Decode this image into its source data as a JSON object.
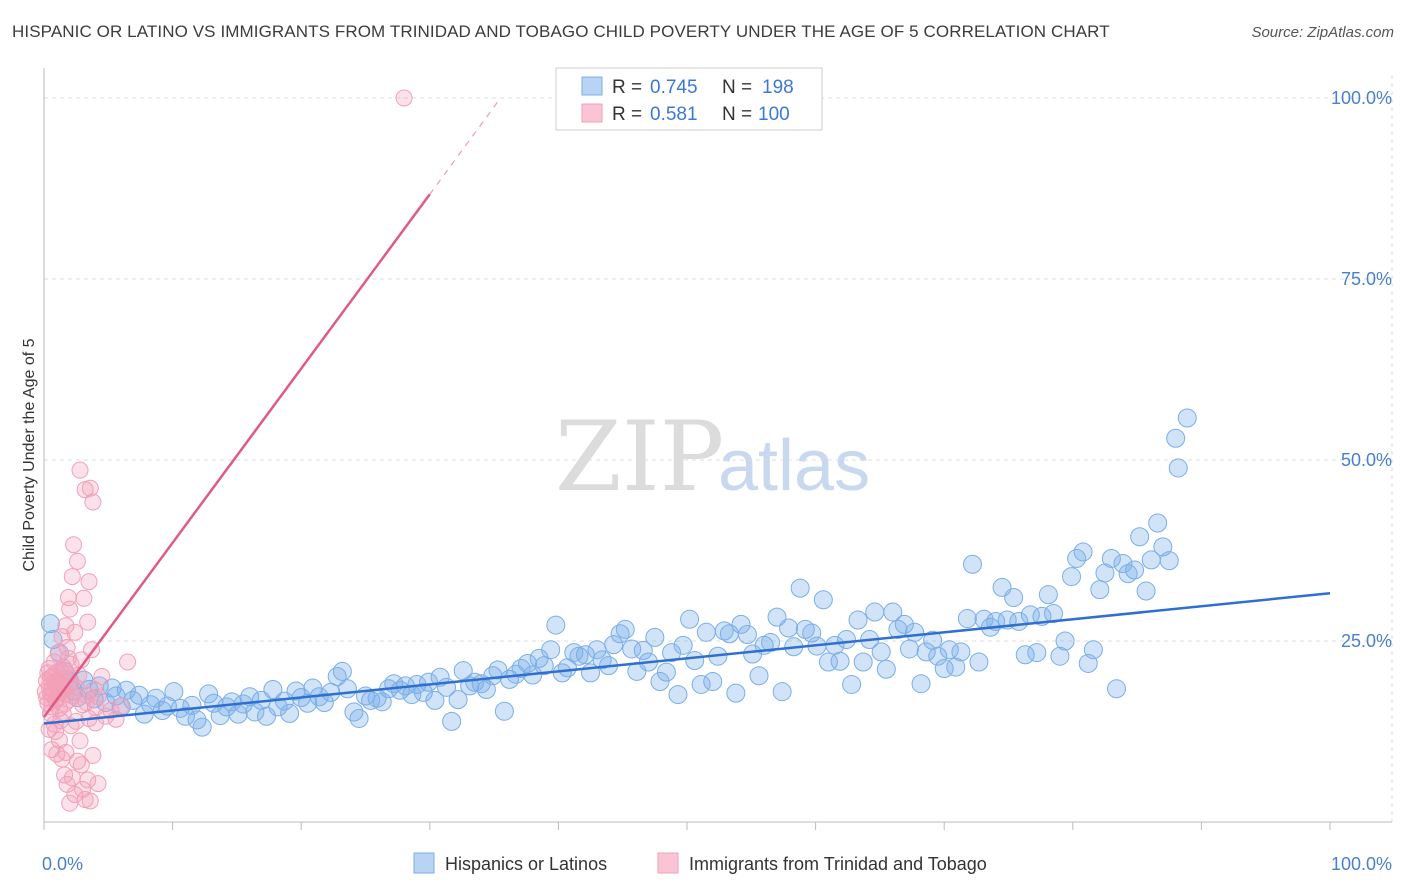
{
  "title": "HISPANIC OR LATINO VS IMMIGRANTS FROM TRINIDAD AND TOBAGO CHILD POVERTY UNDER THE AGE OF 5 CORRELATION CHART",
  "source": "Source: ZipAtlas.com",
  "watermark": {
    "zip": "ZIP",
    "atlas": "atlas"
  },
  "chart_data": {
    "type": "scatter",
    "title": "HISPANIC OR LATINO VS IMMIGRANTS FROM TRINIDAD AND TOBAGO CHILD POVERTY UNDER THE AGE OF 5 CORRELATION CHART",
    "xlabel": "",
    "ylabel": "Child Poverty Under the Age of 5",
    "xlim": [
      0,
      100
    ],
    "ylim": [
      0,
      105
    ],
    "x_tick_labels": {
      "left": "0.0%",
      "right": "100.0%"
    },
    "y_ticks": [
      25,
      50,
      75,
      100
    ],
    "y_tick_labels": [
      "25.0%",
      "50.0%",
      "75.0%",
      "100.0%"
    ],
    "grid": true,
    "legend_position": "top-center",
    "series": [
      {
        "name": "Hispanics or Latinos",
        "color": "#7aaee8",
        "line_color": "#2f6fd0",
        "R": "0.745",
        "N": "198",
        "trend": {
          "x0": 0,
          "y0": 13.6,
          "x1": 100,
          "y1": 31.6
        },
        "points": [
          [
            0.5,
            27.4
          ],
          [
            0.7,
            25.2
          ],
          [
            1.2,
            23.3
          ],
          [
            1.6,
            20.8
          ],
          [
            2.0,
            19.4
          ],
          [
            2.3,
            18.1
          ],
          [
            2.6,
            17.2
          ],
          [
            3.1,
            19.6
          ],
          [
            3.5,
            18.3
          ],
          [
            3.9,
            17.0
          ],
          [
            4.3,
            18.8
          ],
          [
            4.8,
            16.5
          ],
          [
            5.3,
            18.5
          ],
          [
            5.6,
            17.4
          ],
          [
            6.0,
            15.9
          ],
          [
            6.4,
            18.2
          ],
          [
            6.9,
            16.8
          ],
          [
            7.4,
            17.5
          ],
          [
            7.8,
            14.9
          ],
          [
            8.3,
            16.2
          ],
          [
            8.7,
            17.1
          ],
          [
            9.2,
            15.4
          ],
          [
            9.6,
            16.0
          ],
          [
            10.1,
            18.0
          ],
          [
            10.6,
            15.7
          ],
          [
            11.0,
            14.6
          ],
          [
            11.5,
            16.1
          ],
          [
            11.9,
            14.1
          ],
          [
            12.3,
            13.1
          ],
          [
            12.8,
            17.7
          ],
          [
            13.2,
            16.4
          ],
          [
            13.7,
            14.7
          ],
          [
            14.2,
            15.9
          ],
          [
            14.6,
            16.6
          ],
          [
            15.1,
            14.9
          ],
          [
            15.5,
            16.3
          ],
          [
            16.0,
            17.3
          ],
          [
            16.4,
            15.2
          ],
          [
            16.9,
            16.8
          ],
          [
            17.3,
            14.6
          ],
          [
            17.8,
            18.3
          ],
          [
            18.2,
            15.9
          ],
          [
            18.7,
            16.7
          ],
          [
            19.1,
            15.0
          ],
          [
            19.6,
            18.1
          ],
          [
            20.0,
            17.2
          ],
          [
            20.5,
            16.4
          ],
          [
            20.9,
            18.5
          ],
          [
            21.4,
            17.3
          ],
          [
            21.8,
            16.5
          ],
          [
            22.3,
            17.9
          ],
          [
            22.8,
            20.1
          ],
          [
            23.2,
            20.8
          ],
          [
            23.6,
            18.4
          ],
          [
            24.1,
            15.2
          ],
          [
            24.5,
            14.3
          ],
          [
            25.0,
            17.4
          ],
          [
            25.4,
            16.8
          ],
          [
            25.9,
            17.1
          ],
          [
            26.3,
            16.6
          ],
          [
            26.8,
            18.4
          ],
          [
            27.2,
            19.1
          ],
          [
            27.7,
            18.2
          ],
          [
            28.1,
            18.8
          ],
          [
            28.6,
            17.6
          ],
          [
            29.0,
            19.0
          ],
          [
            29.5,
            17.9
          ],
          [
            29.9,
            19.3
          ],
          [
            30.4,
            16.8
          ],
          [
            30.8,
            20.0
          ],
          [
            31.3,
            18.6
          ],
          [
            31.7,
            13.9
          ],
          [
            32.2,
            16.9
          ],
          [
            32.6,
            20.9
          ],
          [
            33.1,
            18.8
          ],
          [
            33.5,
            19.3
          ],
          [
            34.0,
            19.1
          ],
          [
            34.4,
            18.3
          ],
          [
            34.9,
            20.2
          ],
          [
            35.3,
            21.0
          ],
          [
            35.8,
            15.3
          ],
          [
            36.2,
            19.7
          ],
          [
            36.7,
            20.4
          ],
          [
            37.1,
            21.2
          ],
          [
            37.6,
            21.9
          ],
          [
            38.0,
            20.3
          ],
          [
            38.5,
            22.6
          ],
          [
            38.9,
            21.6
          ],
          [
            39.4,
            23.8
          ],
          [
            39.8,
            27.2
          ],
          [
            40.3,
            20.6
          ],
          [
            40.7,
            21.3
          ],
          [
            41.2,
            23.4
          ],
          [
            41.6,
            22.9
          ],
          [
            42.1,
            23.1
          ],
          [
            42.5,
            20.6
          ],
          [
            43.0,
            23.8
          ],
          [
            43.4,
            22.4
          ],
          [
            43.9,
            21.6
          ],
          [
            44.3,
            24.5
          ],
          [
            44.8,
            26.0
          ],
          [
            45.2,
            26.6
          ],
          [
            45.7,
            23.9
          ],
          [
            46.1,
            20.8
          ],
          [
            46.6,
            23.7
          ],
          [
            47.0,
            22.1
          ],
          [
            47.5,
            25.5
          ],
          [
            47.9,
            19.4
          ],
          [
            48.4,
            20.7
          ],
          [
            48.8,
            23.4
          ],
          [
            49.3,
            17.6
          ],
          [
            49.7,
            24.4
          ],
          [
            50.2,
            28.0
          ],
          [
            50.6,
            22.3
          ],
          [
            51.1,
            19.0
          ],
          [
            51.5,
            26.2
          ],
          [
            52.0,
            19.4
          ],
          [
            52.4,
            22.9
          ],
          [
            52.9,
            26.4
          ],
          [
            53.3,
            26.0
          ],
          [
            53.8,
            17.8
          ],
          [
            54.2,
            27.3
          ],
          [
            54.7,
            25.9
          ],
          [
            55.1,
            23.2
          ],
          [
            55.6,
            20.2
          ],
          [
            56.0,
            24.4
          ],
          [
            56.5,
            24.8
          ],
          [
            57.0,
            28.3
          ],
          [
            57.4,
            18.0
          ],
          [
            57.9,
            26.8
          ],
          [
            58.3,
            24.2
          ],
          [
            58.8,
            32.3
          ],
          [
            59.2,
            26.6
          ],
          [
            59.7,
            26.1
          ],
          [
            60.1,
            24.3
          ],
          [
            60.6,
            30.7
          ],
          [
            61.0,
            22.1
          ],
          [
            61.5,
            24.4
          ],
          [
            61.9,
            22.2
          ],
          [
            62.4,
            25.2
          ],
          [
            62.8,
            19.0
          ],
          [
            63.3,
            27.9
          ],
          [
            63.7,
            22.1
          ],
          [
            64.2,
            25.2
          ],
          [
            64.6,
            29.0
          ],
          [
            65.1,
            23.5
          ],
          [
            65.5,
            21.1
          ],
          [
            66.0,
            29.0
          ],
          [
            66.4,
            26.6
          ],
          [
            66.9,
            27.3
          ],
          [
            67.3,
            23.9
          ],
          [
            67.7,
            26.2
          ],
          [
            68.2,
            19.1
          ],
          [
            68.6,
            23.5
          ],
          [
            69.1,
            25.1
          ],
          [
            69.5,
            22.9
          ],
          [
            70.0,
            21.2
          ],
          [
            70.4,
            23.8
          ],
          [
            70.9,
            21.4
          ],
          [
            71.3,
            23.5
          ],
          [
            71.8,
            28.1
          ],
          [
            72.2,
            35.6
          ],
          [
            72.7,
            22.1
          ],
          [
            73.1,
            28.0
          ],
          [
            73.6,
            26.9
          ],
          [
            74.0,
            27.7
          ],
          [
            74.5,
            32.4
          ],
          [
            74.9,
            27.9
          ],
          [
            75.4,
            31.0
          ],
          [
            75.8,
            27.7
          ],
          [
            76.3,
            23.1
          ],
          [
            76.7,
            28.6
          ],
          [
            77.2,
            23.4
          ],
          [
            77.6,
            28.4
          ],
          [
            78.1,
            31.4
          ],
          [
            78.5,
            28.8
          ],
          [
            79.0,
            22.9
          ],
          [
            79.4,
            25.0
          ],
          [
            79.9,
            33.9
          ],
          [
            80.3,
            36.4
          ],
          [
            80.8,
            37.3
          ],
          [
            81.2,
            21.9
          ],
          [
            81.6,
            23.8
          ],
          [
            82.1,
            32.1
          ],
          [
            82.5,
            34.4
          ],
          [
            83.0,
            36.4
          ],
          [
            83.4,
            18.4
          ],
          [
            83.9,
            35.7
          ],
          [
            84.3,
            34.3
          ],
          [
            84.8,
            34.8
          ],
          [
            85.2,
            39.4
          ],
          [
            85.7,
            31.9
          ],
          [
            86.1,
            36.2
          ],
          [
            86.6,
            41.3
          ],
          [
            87.0,
            38.0
          ],
          [
            87.5,
            36.1
          ],
          [
            88.0,
            53.0
          ],
          [
            88.2,
            48.9
          ],
          [
            88.9,
            55.8
          ]
        ]
      },
      {
        "name": "Immigrants from Trinidad and Tobago",
        "color": "#f2a0b8",
        "line_color": "#e05a86",
        "R": "0.581",
        "N": "100",
        "trend": {
          "x0": 0,
          "y0": 14.5,
          "x1": 30,
          "y1": 86.7,
          "dash_x1": 35.5,
          "dash_y1": 100.0
        },
        "points": [
          [
            0.1,
            18.0
          ],
          [
            0.2,
            19.5
          ],
          [
            0.2,
            17.2
          ],
          [
            0.3,
            20.6
          ],
          [
            0.3,
            16.4
          ],
          [
            0.4,
            18.8
          ],
          [
            0.4,
            21.2
          ],
          [
            0.5,
            17.8
          ],
          [
            0.5,
            19.9
          ],
          [
            0.6,
            15.9
          ],
          [
            0.6,
            18.4
          ],
          [
            0.7,
            20.2
          ],
          [
            0.7,
            17.5
          ],
          [
            0.8,
            19.3
          ],
          [
            0.8,
            22.1
          ],
          [
            0.9,
            16.8
          ],
          [
            0.9,
            18.9
          ],
          [
            1.0,
            20.7
          ],
          [
            1.0,
            17.1
          ],
          [
            1.1,
            19.6
          ],
          [
            1.1,
            23.4
          ],
          [
            1.2,
            18.2
          ],
          [
            1.2,
            15.7
          ],
          [
            1.3,
            20.9
          ],
          [
            1.3,
            17.9
          ],
          [
            1.4,
            19.1
          ],
          [
            1.4,
            25.6
          ],
          [
            1.5,
            18.5
          ],
          [
            1.5,
            21.4
          ],
          [
            1.6,
            16.3
          ],
          [
            1.6,
            19.8
          ],
          [
            1.7,
            27.1
          ],
          [
            1.7,
            17.6
          ],
          [
            1.8,
            20.4
          ],
          [
            1.8,
            24.1
          ],
          [
            1.9,
            18.7
          ],
          [
            1.9,
            22.6
          ],
          [
            2.0,
            16.9
          ],
          [
            2.0,
            29.4
          ],
          [
            2.1,
            19.2
          ],
          [
            2.1,
            21.8
          ],
          [
            2.2,
            33.9
          ],
          [
            2.2,
            17.4
          ],
          [
            2.3,
            38.3
          ],
          [
            2.4,
            26.2
          ],
          [
            2.5,
            18.6
          ],
          [
            2.6,
            36.0
          ],
          [
            2.7,
            20.3
          ],
          [
            2.8,
            48.6
          ],
          [
            2.9,
            22.4
          ],
          [
            3.0,
            16.2
          ],
          [
            3.1,
            30.9
          ],
          [
            3.2,
            45.9
          ],
          [
            3.3,
            17.5
          ],
          [
            3.4,
            27.6
          ],
          [
            3.5,
            33.2
          ],
          [
            3.6,
            46.1
          ],
          [
            3.7,
            23.8
          ],
          [
            3.8,
            44.2
          ],
          [
            3.9,
            18.3
          ],
          [
            4.0,
            15.8
          ],
          [
            4.2,
            17.3
          ],
          [
            4.5,
            20.1
          ],
          [
            4.8,
            14.6
          ],
          [
            5.2,
            15.4
          ],
          [
            5.6,
            14.2
          ],
          [
            6.0,
            16.0
          ],
          [
            6.5,
            22.1
          ],
          [
            0.4,
            12.8
          ],
          [
            0.6,
            10.0
          ],
          [
            0.8,
            13.5
          ],
          [
            1.0,
            9.4
          ],
          [
            1.2,
            11.3
          ],
          [
            1.4,
            8.7
          ],
          [
            1.6,
            6.5
          ],
          [
            1.8,
            5.2
          ],
          [
            2.0,
            2.6
          ],
          [
            2.2,
            6.1
          ],
          [
            2.4,
            3.8
          ],
          [
            2.6,
            8.4
          ],
          [
            2.8,
            11.2
          ],
          [
            3.0,
            4.5
          ],
          [
            3.2,
            3.1
          ],
          [
            3.4,
            5.8
          ],
          [
            3.6,
            2.9
          ],
          [
            3.8,
            9.2
          ],
          [
            4.0,
            13.7
          ],
          [
            4.2,
            5.3
          ],
          [
            1.5,
            14.9
          ],
          [
            2.5,
            13.9
          ],
          [
            3.5,
            14.3
          ],
          [
            0.9,
            12.5
          ],
          [
            1.7,
            9.6
          ],
          [
            2.9,
            7.9
          ],
          [
            1.3,
            14.0
          ],
          [
            0.5,
            15.0
          ],
          [
            2.1,
            13.3
          ],
          [
            3.3,
            16.5
          ],
          [
            1.9,
            31.0
          ],
          [
            28.0,
            100.0
          ]
        ]
      }
    ]
  },
  "legend": {
    "r_label": "R = ",
    "n_label": "N = ",
    "entries": [
      {
        "r": "0.745",
        "n": "198"
      },
      {
        "r": "0.581",
        "n": "100"
      }
    ]
  },
  "bottom_legend": [
    {
      "label": "Hispanics or Latinos"
    },
    {
      "label": "Immigrants from Trinidad and Tobago"
    }
  ]
}
